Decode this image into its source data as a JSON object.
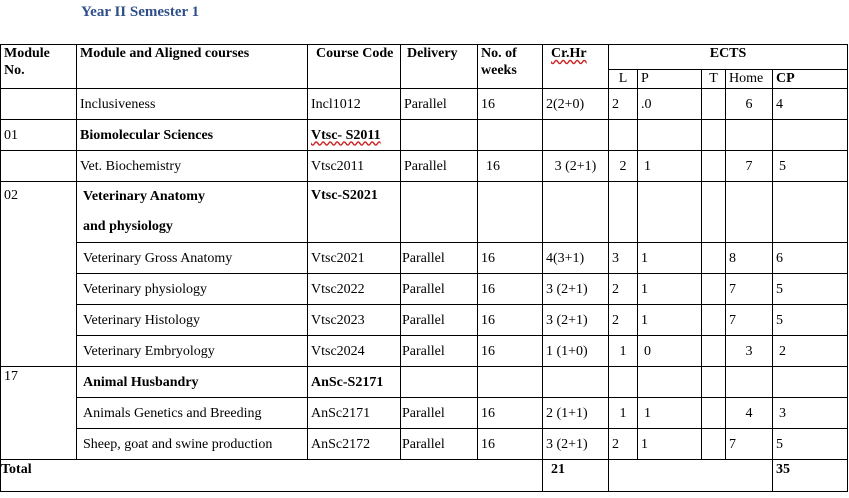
{
  "title": "Year II Semester 1",
  "headers": {
    "module_no": "Module No.",
    "module_courses": "Module and Aligned courses",
    "course_code": "Course Code",
    "delivery": "Delivery",
    "weeks": "No. of weeks",
    "crhr": "Cr.Hr",
    "ects": "ECTS",
    "L": "L",
    "P": "P",
    "T": "T",
    "Home": "Home",
    "CP": "CP"
  },
  "rows": [
    {
      "module": "",
      "course": "Inclusiveness",
      "code": "Incl1012",
      "delivery": "Parallel",
      "weeks": "16",
      "crhr": "2(2+0)",
      "L": "2",
      "P": ".0",
      "T": "",
      "home": "6",
      "cp": "4"
    },
    {
      "module": "01",
      "course": "Biomolecular Sciences",
      "code": "Vtsc- S2011",
      "delivery": "",
      "weeks": "",
      "crhr": "",
      "L": "",
      "P": "",
      "T": "",
      "home": "",
      "cp": ""
    },
    {
      "module": "",
      "course": "Vet. Biochemistry",
      "code": "Vtsc2011",
      "delivery": "Parallel",
      "weeks": "16",
      "crhr": "3 (2+1)",
      "L": "2",
      "P": "1",
      "T": "",
      "home": "7",
      "cp": "5"
    },
    {
      "module": "02",
      "course": "Veterinary Anatomy",
      "course_line2": "and physiology",
      "code": "Vtsc-S2021",
      "delivery": "",
      "weeks": "",
      "crhr": "",
      "L": "",
      "P": "",
      "T": "",
      "home": "",
      "cp": ""
    },
    {
      "module": "",
      "course": "Veterinary Gross Anatomy",
      "code": "Vtsc2021",
      "delivery": "Parallel",
      "weeks": "16",
      "crhr": "4(3+1)",
      "L": "3",
      "P": "1",
      "T": "",
      "home": "8",
      "cp": "6"
    },
    {
      "module": "",
      "course": "Veterinary physiology",
      "code": "Vtsc2022",
      "delivery": "Parallel",
      "weeks": "16",
      "crhr": "3 (2+1)",
      "L": "2",
      "P": "1",
      "T": "",
      "home": "7",
      "cp": "5"
    },
    {
      "module": "",
      "course": "Veterinary Histology",
      "code": "Vtsc2023",
      "delivery": "Parallel",
      "weeks": "16",
      "crhr": "3 (2+1)",
      "L": "2",
      "P": "1",
      "T": "",
      "home": "7",
      "cp": "5"
    },
    {
      "module": "",
      "course": "Veterinary Embryology",
      "code": "Vtsc2024",
      "delivery": "Parallel",
      "weeks": "16",
      "crhr": "1 (1+0)",
      "L": "1",
      "P": "0",
      "T": "",
      "home": "3",
      "cp": "2"
    },
    {
      "module": "17",
      "course": "Animal Husbandry",
      "code": "AnSc-S2171",
      "delivery": "",
      "weeks": "",
      "crhr": "",
      "L": "",
      "P": "",
      "T": "",
      "home": "",
      "cp": ""
    },
    {
      "module": "",
      "course": "Animals Genetics and Breeding",
      "code": "AnSc2171",
      "delivery": "Parallel",
      "weeks": "16",
      "crhr": "2 (1+1)",
      "L": "1",
      "P": "1",
      "T": "",
      "home": "4",
      "cp": "3"
    },
    {
      "module": "",
      "course": "Sheep, goat and swine production",
      "code": "AnSc2172",
      "delivery": "Parallel",
      "weeks": "16",
      "crhr": "3 (2+1)",
      "L": "2",
      "P": "1",
      "T": "",
      "home": "7",
      "cp": "5"
    }
  ],
  "total": {
    "label": "Total",
    "crhr": "21",
    "cp": "35"
  }
}
